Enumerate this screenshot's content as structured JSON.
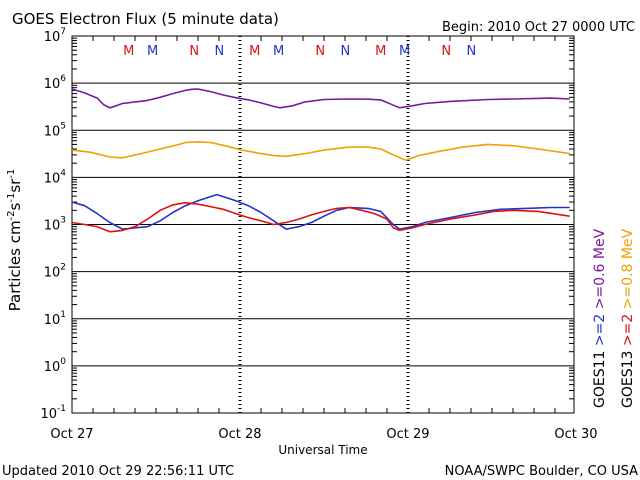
{
  "chart_data": {
    "type": "line",
    "title": "GOES Electron Flux (5 minute data)",
    "begin_label": "Begin: 2010 Oct 27 0000 UTC",
    "xlabel": "Universal Time",
    "ylabel_parts": {
      "base": "Particles cm",
      "exp1": "-2",
      "mid1": "s",
      "exp2": "-1",
      "mid2": "sr",
      "exp3": "-1"
    },
    "x_ticks": [
      "Oct 27",
      "Oct 28",
      "Oct 29",
      "Oct 30"
    ],
    "x_range_days": [
      0,
      3
    ],
    "y_scale": "log",
    "y_exponent_range": [
      -1,
      7
    ],
    "y_tick_exponents": [
      7,
      6,
      5,
      4,
      3,
      2,
      1,
      0,
      -1
    ],
    "threshold_level": 1000,
    "footer_left": "Updated 2010 Oct 29 22:56:11 UTC",
    "footer_right": "NOAA/SWPC Boulder, CO USA",
    "legend": [
      {
        "text": "GOES11",
        "color": "#000000"
      },
      {
        "text": "GOES13",
        "color": "#000000"
      },
      {
        "text": ">=2",
        "color": "#2233cc"
      },
      {
        "text": ">=2",
        "color": "#dd1111"
      },
      {
        "text": ">=0.6 MeV",
        "color": "#7a1aa0"
      },
      {
        "text": ">=0.8 MeV",
        "color": "#f0a000"
      }
    ],
    "markers": [
      {
        "label": "M",
        "day": 0.33,
        "color": "#dd1111"
      },
      {
        "label": "M",
        "day": 0.52,
        "color": "#2233cc"
      },
      {
        "label": "N",
        "day": 0.85,
        "color": "#dd1111"
      },
      {
        "label": "N",
        "day": 1.05,
        "color": "#2233cc"
      },
      {
        "label": "M",
        "day": 1.33,
        "color": "#dd1111"
      },
      {
        "label": "M",
        "day": 1.52,
        "color": "#2233cc"
      },
      {
        "label": "N",
        "day": 1.85,
        "color": "#dd1111"
      },
      {
        "label": "N",
        "day": 2.05,
        "color": "#2233cc"
      },
      {
        "label": "M",
        "day": 2.33,
        "color": "#dd1111"
      },
      {
        "label": "M",
        "day": 2.52,
        "color": "#2233cc"
      },
      {
        "label": "N",
        "day": 2.85,
        "color": "#dd1111"
      },
      {
        "label": "N",
        "day": 3.05,
        "color": "#2233cc"
      }
    ],
    "series": [
      {
        "key": "g11_06",
        "color": "#7a1aa0",
        "points": [
          [
            0.0,
            750000
          ],
          [
            0.1,
            620000
          ],
          [
            0.2,
            480000
          ],
          [
            0.25,
            350000
          ],
          [
            0.3,
            300000
          ],
          [
            0.35,
            330000
          ],
          [
            0.4,
            370000
          ],
          [
            0.5,
            400000
          ],
          [
            0.6,
            430000
          ],
          [
            0.7,
            500000
          ],
          [
            0.8,
            600000
          ],
          [
            0.9,
            700000
          ],
          [
            0.95,
            740000
          ],
          [
            1.0,
            750000
          ],
          [
            1.1,
            660000
          ],
          [
            1.2,
            560000
          ],
          [
            1.3,
            490000
          ],
          [
            1.4,
            440000
          ],
          [
            1.5,
            380000
          ],
          [
            1.6,
            320000
          ],
          [
            1.65,
            300000
          ],
          [
            1.75,
            330000
          ],
          [
            1.85,
            400000
          ],
          [
            2.0,
            450000
          ],
          [
            2.2,
            460000
          ],
          [
            2.35,
            455000
          ],
          [
            2.45,
            440000
          ],
          [
            2.55,
            340000
          ],
          [
            2.6,
            300000
          ],
          [
            2.7,
            330000
          ],
          [
            2.8,
            370000
          ],
          [
            3.0,
            410000
          ],
          [
            3.3,
            450000
          ],
          [
            3.5,
            460000
          ],
          [
            3.8,
            480000
          ],
          [
            3.95,
            460000
          ]
        ]
      },
      {
        "key": "g13_08",
        "color": "#f0a000",
        "points": [
          [
            0.0,
            38000
          ],
          [
            0.15,
            34000
          ],
          [
            0.3,
            27000
          ],
          [
            0.4,
            26000
          ],
          [
            0.55,
            32000
          ],
          [
            0.7,
            40000
          ],
          [
            0.85,
            50000
          ],
          [
            0.9,
            55000
          ],
          [
            1.0,
            57000
          ],
          [
            1.1,
            55000
          ],
          [
            1.2,
            48000
          ],
          [
            1.35,
            38000
          ],
          [
            1.5,
            32000
          ],
          [
            1.6,
            29000
          ],
          [
            1.7,
            28000
          ],
          [
            1.85,
            32000
          ],
          [
            2.0,
            38000
          ],
          [
            2.2,
            44000
          ],
          [
            2.35,
            44000
          ],
          [
            2.45,
            40000
          ],
          [
            2.55,
            30000
          ],
          [
            2.65,
            23000
          ],
          [
            2.75,
            29000
          ],
          [
            2.9,
            35000
          ],
          [
            3.1,
            44000
          ],
          [
            3.3,
            50000
          ],
          [
            3.5,
            47000
          ],
          [
            3.7,
            40000
          ],
          [
            3.95,
            32000
          ]
        ]
      },
      {
        "key": "g11_2",
        "color": "#2233cc",
        "points": [
          [
            0.0,
            3000
          ],
          [
            0.1,
            2500
          ],
          [
            0.2,
            1700
          ],
          [
            0.3,
            1100
          ],
          [
            0.4,
            800
          ],
          [
            0.5,
            850
          ],
          [
            0.6,
            900
          ],
          [
            0.7,
            1200
          ],
          [
            0.8,
            1800
          ],
          [
            0.9,
            2500
          ],
          [
            1.0,
            3200
          ],
          [
            1.1,
            3900
          ],
          [
            1.15,
            4300
          ],
          [
            1.2,
            3900
          ],
          [
            1.3,
            3200
          ],
          [
            1.4,
            2500
          ],
          [
            1.5,
            1800
          ],
          [
            1.6,
            1200
          ],
          [
            1.7,
            800
          ],
          [
            1.8,
            900
          ],
          [
            1.9,
            1100
          ],
          [
            2.0,
            1500
          ],
          [
            2.1,
            2000
          ],
          [
            2.2,
            2300
          ],
          [
            2.35,
            2200
          ],
          [
            2.45,
            1900
          ],
          [
            2.55,
            1000
          ],
          [
            2.6,
            800
          ],
          [
            2.7,
            900
          ],
          [
            2.8,
            1100
          ],
          [
            3.0,
            1400
          ],
          [
            3.2,
            1800
          ],
          [
            3.4,
            2100
          ],
          [
            3.6,
            2200
          ],
          [
            3.8,
            2300
          ],
          [
            3.95,
            2300
          ]
        ]
      },
      {
        "key": "g13_2",
        "color": "#dd1111",
        "points": [
          [
            0.0,
            1100
          ],
          [
            0.1,
            1000
          ],
          [
            0.2,
            900
          ],
          [
            0.3,
            700
          ],
          [
            0.4,
            750
          ],
          [
            0.5,
            900
          ],
          [
            0.6,
            1300
          ],
          [
            0.7,
            2000
          ],
          [
            0.8,
            2600
          ],
          [
            0.9,
            2900
          ],
          [
            1.0,
            2700
          ],
          [
            1.1,
            2400
          ],
          [
            1.2,
            2100
          ],
          [
            1.3,
            1700
          ],
          [
            1.4,
            1400
          ],
          [
            1.5,
            1200
          ],
          [
            1.6,
            1000
          ],
          [
            1.7,
            1100
          ],
          [
            1.8,
            1300
          ],
          [
            1.9,
            1600
          ],
          [
            2.0,
            1900
          ],
          [
            2.1,
            2200
          ],
          [
            2.2,
            2300
          ],
          [
            2.3,
            2000
          ],
          [
            2.4,
            1700
          ],
          [
            2.5,
            1300
          ],
          [
            2.55,
            850
          ],
          [
            2.6,
            750
          ],
          [
            2.7,
            850
          ],
          [
            2.8,
            1000
          ],
          [
            3.0,
            1300
          ],
          [
            3.2,
            1600
          ],
          [
            3.35,
            1900
          ],
          [
            3.5,
            2000
          ],
          [
            3.7,
            1900
          ],
          [
            3.95,
            1500
          ]
        ]
      }
    ]
  }
}
